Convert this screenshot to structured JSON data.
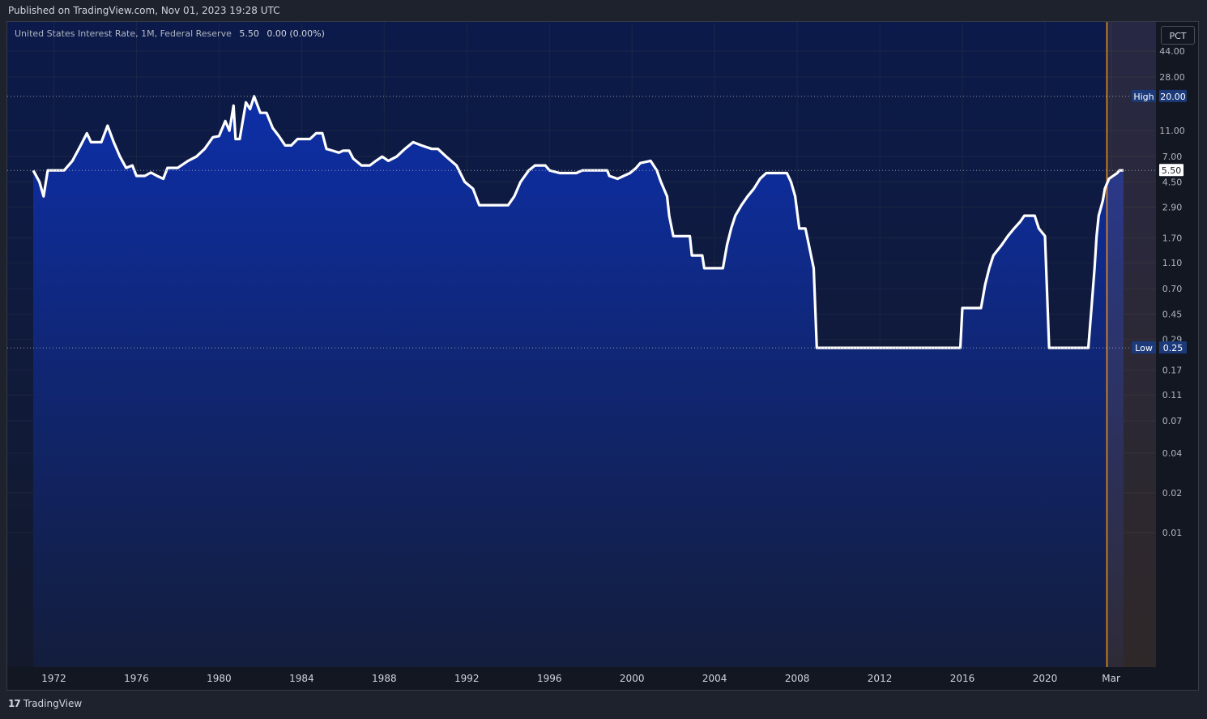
{
  "publish_text": "Published on TradingView.com, Nov 01, 2023 19:28 UTC",
  "header": {
    "symbol": "United States Interest Rate, 1M, Federal Reserve",
    "last": "5.50",
    "change": "0.00 (0.00%)"
  },
  "scale_button": "PCT",
  "brand": "TradingView",
  "colors": {
    "line": "#ffffff",
    "area_top": "#0d2fa8",
    "highlight": "#f7931a",
    "label_bg": "#1c3a7a"
  },
  "chart_data": {
    "type": "area",
    "title": "United States Interest Rate",
    "y_scale": "log",
    "x_ticks": [
      "1972",
      "1976",
      "1980",
      "1984",
      "1988",
      "1992",
      "1996",
      "2000",
      "2004",
      "2008",
      "2012",
      "2016",
      "2020",
      "Mar"
    ],
    "y_ticks": [
      "44.00",
      "28.00",
      "11.00",
      "7.00",
      "4.50",
      "2.90",
      "1.70",
      "1.10",
      "0.70",
      "0.45",
      "0.29",
      "0.17",
      "0.11",
      "0.07",
      "0.04",
      "0.02",
      "0.01"
    ],
    "high": {
      "label": "High",
      "value": "20.00"
    },
    "low": {
      "label": "Low",
      "value": "0.25"
    },
    "last": {
      "value": "5.50"
    },
    "series": [
      {
        "points": [
          [
            1971.0,
            5.5
          ],
          [
            1971.3,
            4.5
          ],
          [
            1971.5,
            3.5
          ],
          [
            1971.7,
            5.5
          ],
          [
            1972.5,
            5.5
          ],
          [
            1972.9,
            6.5
          ],
          [
            1973.3,
            8.5
          ],
          [
            1973.6,
            10.5
          ],
          [
            1973.8,
            9.0
          ],
          [
            1974.3,
            9.0
          ],
          [
            1974.6,
            12.0
          ],
          [
            1974.9,
            9.0
          ],
          [
            1975.2,
            7.0
          ],
          [
            1975.5,
            5.75
          ],
          [
            1975.8,
            6.0
          ],
          [
            1976.0,
            5.0
          ],
          [
            1976.4,
            5.0
          ],
          [
            1976.7,
            5.3
          ],
          [
            1977.0,
            5.0
          ],
          [
            1977.3,
            4.75
          ],
          [
            1977.5,
            5.75
          ],
          [
            1978.0,
            5.75
          ],
          [
            1978.5,
            6.5
          ],
          [
            1978.9,
            7.0
          ],
          [
            1979.3,
            8.0
          ],
          [
            1979.7,
            9.8
          ],
          [
            1980.0,
            10.0
          ],
          [
            1980.3,
            13.0
          ],
          [
            1980.5,
            11.0
          ],
          [
            1980.7,
            17.0
          ],
          [
            1980.8,
            9.5
          ],
          [
            1981.0,
            9.5
          ],
          [
            1981.3,
            18.0
          ],
          [
            1981.5,
            16.0
          ],
          [
            1981.7,
            20.0
          ],
          [
            1982.0,
            15.0
          ],
          [
            1982.3,
            15.0
          ],
          [
            1982.6,
            11.5
          ],
          [
            1982.9,
            10.0
          ],
          [
            1983.2,
            8.5
          ],
          [
            1983.5,
            8.5
          ],
          [
            1983.8,
            9.5
          ],
          [
            1984.2,
            9.5
          ],
          [
            1984.4,
            9.5
          ],
          [
            1984.7,
            10.5
          ],
          [
            1985.0,
            10.5
          ],
          [
            1985.2,
            8.0
          ],
          [
            1985.5,
            7.75
          ],
          [
            1985.8,
            7.5
          ],
          [
            1986.0,
            7.75
          ],
          [
            1986.3,
            7.75
          ],
          [
            1986.5,
            6.75
          ],
          [
            1986.9,
            6.0
          ],
          [
            1987.3,
            6.0
          ],
          [
            1987.6,
            6.5
          ],
          [
            1987.9,
            7.0
          ],
          [
            1988.2,
            6.5
          ],
          [
            1988.6,
            7.0
          ],
          [
            1989.0,
            8.0
          ],
          [
            1989.4,
            9.0
          ],
          [
            1989.8,
            8.5
          ],
          [
            1990.3,
            8.0
          ],
          [
            1990.6,
            8.0
          ],
          [
            1991.0,
            7.0
          ],
          [
            1991.5,
            6.0
          ],
          [
            1991.9,
            4.5
          ],
          [
            1992.3,
            4.0
          ],
          [
            1992.6,
            3.0
          ],
          [
            1993.0,
            3.0
          ],
          [
            1993.5,
            3.0
          ],
          [
            1994.0,
            3.0
          ],
          [
            1994.3,
            3.5
          ],
          [
            1994.6,
            4.5
          ],
          [
            1995.0,
            5.5
          ],
          [
            1995.3,
            6.0
          ],
          [
            1995.8,
            6.0
          ],
          [
            1996.0,
            5.5
          ],
          [
            1996.5,
            5.25
          ],
          [
            1997.3,
            5.25
          ],
          [
            1997.6,
            5.5
          ],
          [
            1998.3,
            5.5
          ],
          [
            1998.8,
            5.5
          ],
          [
            1998.9,
            5.0
          ],
          [
            1999.3,
            4.75
          ],
          [
            1999.6,
            5.0
          ],
          [
            1999.9,
            5.25
          ],
          [
            2000.2,
            5.75
          ],
          [
            2000.4,
            6.25
          ],
          [
            2000.9,
            6.5
          ],
          [
            2001.2,
            5.5
          ],
          [
            2001.4,
            4.5
          ],
          [
            2001.7,
            3.5
          ],
          [
            2001.8,
            2.5
          ],
          [
            2002.0,
            1.75
          ],
          [
            2002.8,
            1.75
          ],
          [
            2002.9,
            1.25
          ],
          [
            2003.4,
            1.25
          ],
          [
            2003.5,
            1.0
          ],
          [
            2004.4,
            1.0
          ],
          [
            2004.6,
            1.5
          ],
          [
            2004.8,
            2.0
          ],
          [
            2005.0,
            2.5
          ],
          [
            2005.3,
            3.0
          ],
          [
            2005.6,
            3.5
          ],
          [
            2005.9,
            4.0
          ],
          [
            2006.2,
            4.75
          ],
          [
            2006.5,
            5.25
          ],
          [
            2007.5,
            5.25
          ],
          [
            2007.7,
            4.5
          ],
          [
            2007.9,
            3.5
          ],
          [
            2008.1,
            2.0
          ],
          [
            2008.4,
            2.0
          ],
          [
            2008.8,
            1.0
          ],
          [
            2008.95,
            0.25
          ],
          [
            2015.9,
            0.25
          ],
          [
            2016.0,
            0.5
          ],
          [
            2016.9,
            0.5
          ],
          [
            2017.1,
            0.75
          ],
          [
            2017.3,
            1.0
          ],
          [
            2017.5,
            1.25
          ],
          [
            2017.9,
            1.5
          ],
          [
            2018.2,
            1.75
          ],
          [
            2018.5,
            2.0
          ],
          [
            2018.8,
            2.25
          ],
          [
            2019.0,
            2.5
          ],
          [
            2019.5,
            2.5
          ],
          [
            2019.7,
            2.0
          ],
          [
            2020.0,
            1.75
          ],
          [
            2020.2,
            0.25
          ],
          [
            2022.1,
            0.25
          ],
          [
            2022.25,
            0.5
          ],
          [
            2022.4,
            1.0
          ],
          [
            2022.5,
            1.75
          ],
          [
            2022.6,
            2.5
          ],
          [
            2022.8,
            3.25
          ],
          [
            2022.9,
            4.0
          ],
          [
            2023.1,
            4.75
          ],
          [
            2023.3,
            5.0
          ],
          [
            2023.5,
            5.25
          ],
          [
            2023.6,
            5.5
          ],
          [
            2023.8,
            5.5
          ]
        ]
      }
    ]
  }
}
